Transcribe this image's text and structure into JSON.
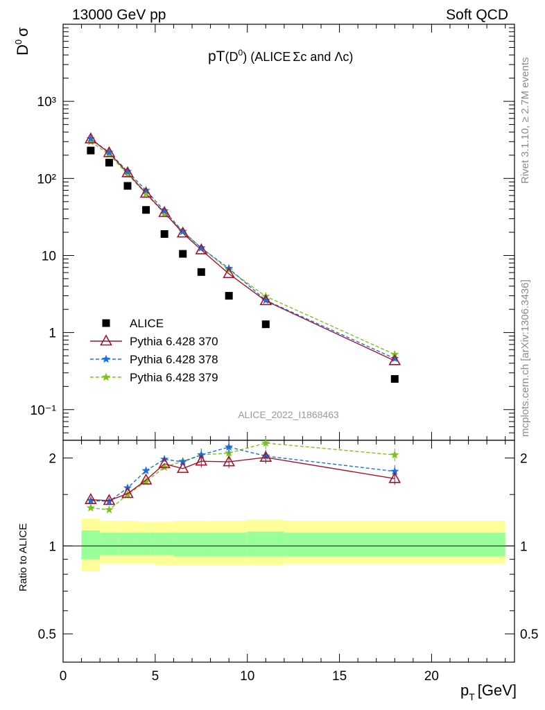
{
  "header": {
    "left": "13000 GeV pp",
    "right": "Soft QCD"
  },
  "side": {
    "rivet": "Rivet 3.1.10, ≥ 2.7M events",
    "site": "mcplots.cern.ch [arXiv:1306.3436]"
  },
  "chart_data": {
    "type": "scatter",
    "title": "pT(D0) (ALICE Σc and Λc)",
    "ylabel": "D0 σ",
    "xlabel": "pT [GeV]",
    "analysis_label": "ALICE_2022_I1868463",
    "ratio_ylabel": "Ratio to ALICE",
    "xlim": [
      0,
      24.5
    ],
    "ylim": [
      0.04,
      10000
    ],
    "yscale": "log",
    "ratio_ylim": [
      0.4,
      2.3
    ],
    "ratio_yscale": "log",
    "x_ticks": [
      "0",
      "5",
      "10",
      "15",
      "20"
    ],
    "y_ticks": [
      "10⁻¹",
      "1",
      "10",
      "10²",
      "10³"
    ],
    "ratio_ticks": [
      "0.5",
      "1",
      "2"
    ],
    "x": [
      1.5,
      2.5,
      3.5,
      4.5,
      5.5,
      6.5,
      7.5,
      9.0,
      11.0,
      18.0
    ],
    "x_edges": [
      1,
      2,
      3,
      4,
      5,
      6,
      7,
      8,
      10,
      12,
      24
    ],
    "series": [
      {
        "name": "ALICE",
        "color": "#000000",
        "marker": "square",
        "values": [
          230,
          160,
          80,
          39,
          19,
          10.5,
          6.1,
          3.0,
          1.28,
          0.25
        ]
      },
      {
        "name": "Pythia 6.428 370",
        "color": "#a0142d",
        "marker": "triangle",
        "dash": "solid",
        "values": [
          325,
          215,
          118,
          64,
          36,
          19.5,
          11.8,
          5.8,
          2.58,
          0.43
        ]
      },
      {
        "name": "Pythia 6.428 378",
        "color": "#1f6fd6",
        "marker": "star",
        "dash": "dashed",
        "values": [
          328,
          218,
          123,
          70,
          38,
          20.5,
          12.5,
          6.8,
          2.62,
          0.46
        ]
      },
      {
        "name": "Pythia 6.428 379",
        "color": "#7cc21c",
        "marker": "star",
        "dash": "dashed",
        "values": [
          300,
          205,
          113,
          63,
          35,
          20.5,
          12.6,
          6.5,
          2.95,
          0.52
        ]
      }
    ],
    "ratios": [
      {
        "name": "Pythia 6.428 370",
        "values": [
          1.44,
          1.43,
          1.51,
          1.68,
          1.91,
          1.84,
          1.95,
          1.94,
          2.01,
          1.7
        ]
      },
      {
        "name": "Pythia 6.428 378",
        "values": [
          1.43,
          1.42,
          1.58,
          1.81,
          1.98,
          1.94,
          2.05,
          2.18,
          2.03,
          1.8
        ]
      },
      {
        "name": "Pythia 6.428 379",
        "values": [
          1.35,
          1.33,
          1.5,
          1.66,
          1.86,
          1.95,
          2.05,
          2.08,
          2.25,
          2.05
        ]
      }
    ],
    "band_outer": [
      [
        0.82,
        1.24
      ],
      [
        0.87,
        1.22
      ],
      [
        0.87,
        1.22
      ],
      [
        0.87,
        1.21
      ],
      [
        0.86,
        1.21
      ],
      [
        0.86,
        1.22
      ],
      [
        0.86,
        1.22
      ],
      [
        0.86,
        1.22
      ],
      [
        0.86,
        1.23
      ],
      [
        0.87,
        1.22
      ]
    ],
    "band_inner": [
      [
        0.9,
        1.13
      ],
      [
        0.93,
        1.11
      ],
      [
        0.93,
        1.11
      ],
      [
        0.93,
        1.11
      ],
      [
        0.93,
        1.11
      ],
      [
        0.92,
        1.11
      ],
      [
        0.92,
        1.11
      ],
      [
        0.92,
        1.11
      ],
      [
        0.92,
        1.12
      ],
      [
        0.92,
        1.11
      ]
    ],
    "band_colors": {
      "outer": "#ffff99",
      "inner": "#99ff99"
    }
  }
}
